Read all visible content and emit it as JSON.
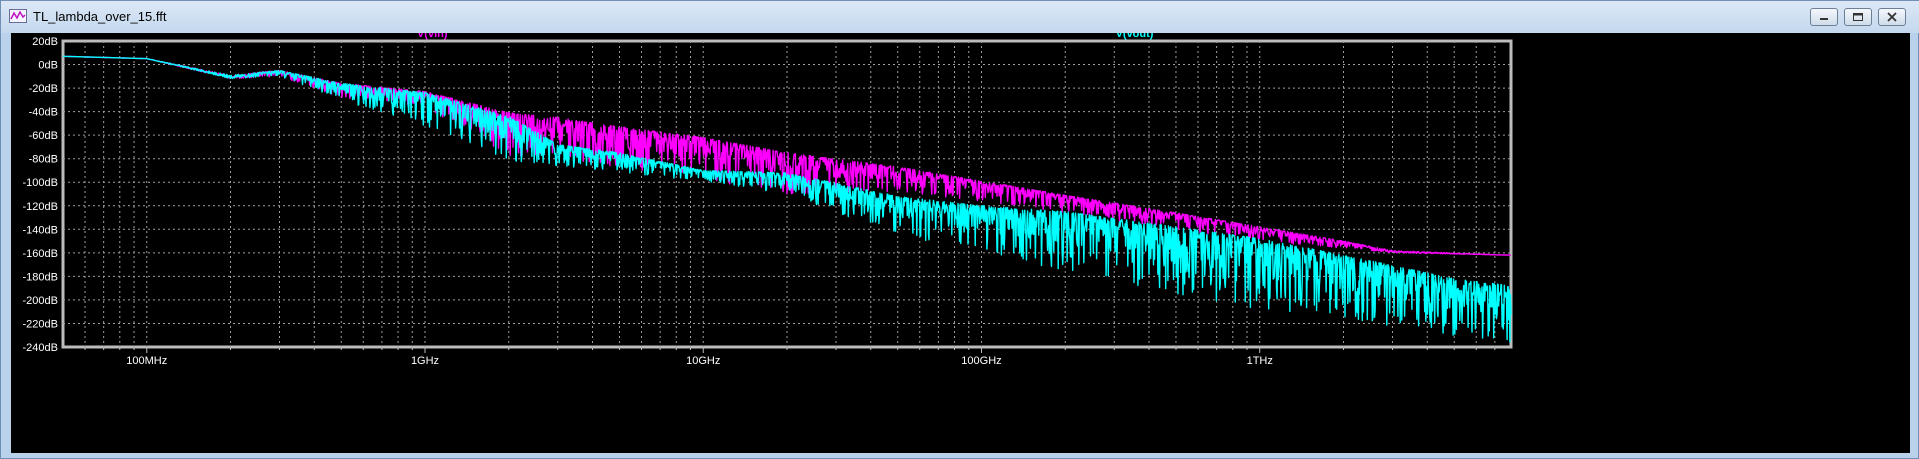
{
  "window": {
    "title": "TL_lambda_over_15.fft",
    "controls": [
      "minimize",
      "maximize",
      "close"
    ]
  },
  "chart_data": {
    "type": "line",
    "title": "",
    "xlabel": "",
    "ylabel": "",
    "x_scale": "log",
    "xlim_hz": [
      50000000,
      8000000000000
    ],
    "ylim_db": [
      -240,
      20
    ],
    "grid": true,
    "background": "#000000",
    "grid_color": "#a0a0a0",
    "x_major_ticks": [
      {
        "value": 100000000,
        "label": "100MHz"
      },
      {
        "value": 1000000000,
        "label": "1GHz"
      },
      {
        "value": 10000000000,
        "label": "10GHz"
      },
      {
        "value": 100000000000,
        "label": "100GHz"
      },
      {
        "value": 1000000000000,
        "label": "1THz"
      }
    ],
    "y_ticks": [
      {
        "value": 20,
        "label": "20dB"
      },
      {
        "value": 0,
        "label": "0dB"
      },
      {
        "value": -20,
        "label": "-20dB"
      },
      {
        "value": -40,
        "label": "-40dB"
      },
      {
        "value": -60,
        "label": "-60dB"
      },
      {
        "value": -80,
        "label": "-80dB"
      },
      {
        "value": -100,
        "label": "-100dB"
      },
      {
        "value": -120,
        "label": "-120dB"
      },
      {
        "value": -140,
        "label": "-140dB"
      },
      {
        "value": -160,
        "label": "-160dB"
      },
      {
        "value": -180,
        "label": "-180dB"
      },
      {
        "value": -200,
        "label": "-200dB"
      },
      {
        "value": -220,
        "label": "-220dB"
      },
      {
        "value": -240,
        "label": "-240dB"
      }
    ],
    "series": [
      {
        "name": "V(vin)",
        "color": "#ff00ff",
        "upper_x": [
          50000000.0,
          100000000.0,
          200000000.0,
          300000000.0,
          500000000.0,
          1000000000.0,
          2000000000.0,
          3000000000.0,
          5000000000.0,
          10000000000.0,
          20000000000.0,
          50000000000.0,
          100000000000.0,
          200000000000.0,
          500000000000.0,
          1000000000000.0,
          2000000000000.0,
          3000000000000.0,
          8000000000000.0
        ],
        "upper_y": [
          7,
          5,
          -9,
          -5,
          -16,
          -23,
          -41,
          -45,
          -53,
          -62,
          -75,
          -87,
          -99,
          -111,
          -126,
          -138,
          -150,
          -158,
          -162
        ],
        "lower_x": [
          50000000.0,
          100000000.0,
          200000000.0,
          300000000.0,
          500000000.0,
          1000000000.0,
          2000000000.0,
          3000000000.0,
          5000000000.0,
          10000000000.0,
          20000000000.0,
          50000000000.0,
          100000000000.0,
          200000000000.0,
          500000000000.0,
          1000000000000.0,
          2000000000000.0,
          3000000000000.0,
          8000000000000.0
        ],
        "lower_y": [
          7,
          5,
          -12,
          -10,
          -28,
          -36,
          -78,
          -80,
          -88,
          -98,
          -110,
          -108,
          -116,
          -126,
          -140,
          -150,
          -156,
          -160,
          -162
        ]
      },
      {
        "name": "V(vout)",
        "color": "#00ffff",
        "upper_x": [
          50000000.0,
          100000000.0,
          200000000.0,
          300000000.0,
          500000000.0,
          1000000000.0,
          2000000000.0,
          3000000000.0,
          5000000000.0,
          10000000000.0,
          20000000000.0,
          50000000000.0,
          100000000000.0,
          200000000000.0,
          500000000000.0,
          1000000000000.0,
          2000000000000.0,
          5000000000000.0,
          8000000000000.0
        ],
        "upper_y": [
          7,
          5,
          -9,
          -5,
          -16,
          -24,
          -44,
          -68,
          -75,
          -90,
          -92,
          -112,
          -120,
          -125,
          -138,
          -148,
          -162,
          -182,
          -188
        ],
        "lower_x": [
          50000000.0,
          100000000.0,
          200000000.0,
          300000000.0,
          500000000.0,
          1000000000.0,
          2000000000.0,
          3000000000.0,
          5000000000.0,
          10000000000.0,
          20000000000.0,
          50000000000.0,
          100000000000.0,
          200000000000.0,
          500000000000.0,
          1000000000000.0,
          2000000000000.0,
          5000000000000.0,
          8000000000000.0
        ],
        "lower_y": [
          7,
          5,
          -12,
          -10,
          -30,
          -52,
          -82,
          -86,
          -92,
          -99,
          -110,
          -145,
          -160,
          -175,
          -195,
          -208,
          -218,
          -232,
          -236
        ]
      }
    ]
  }
}
